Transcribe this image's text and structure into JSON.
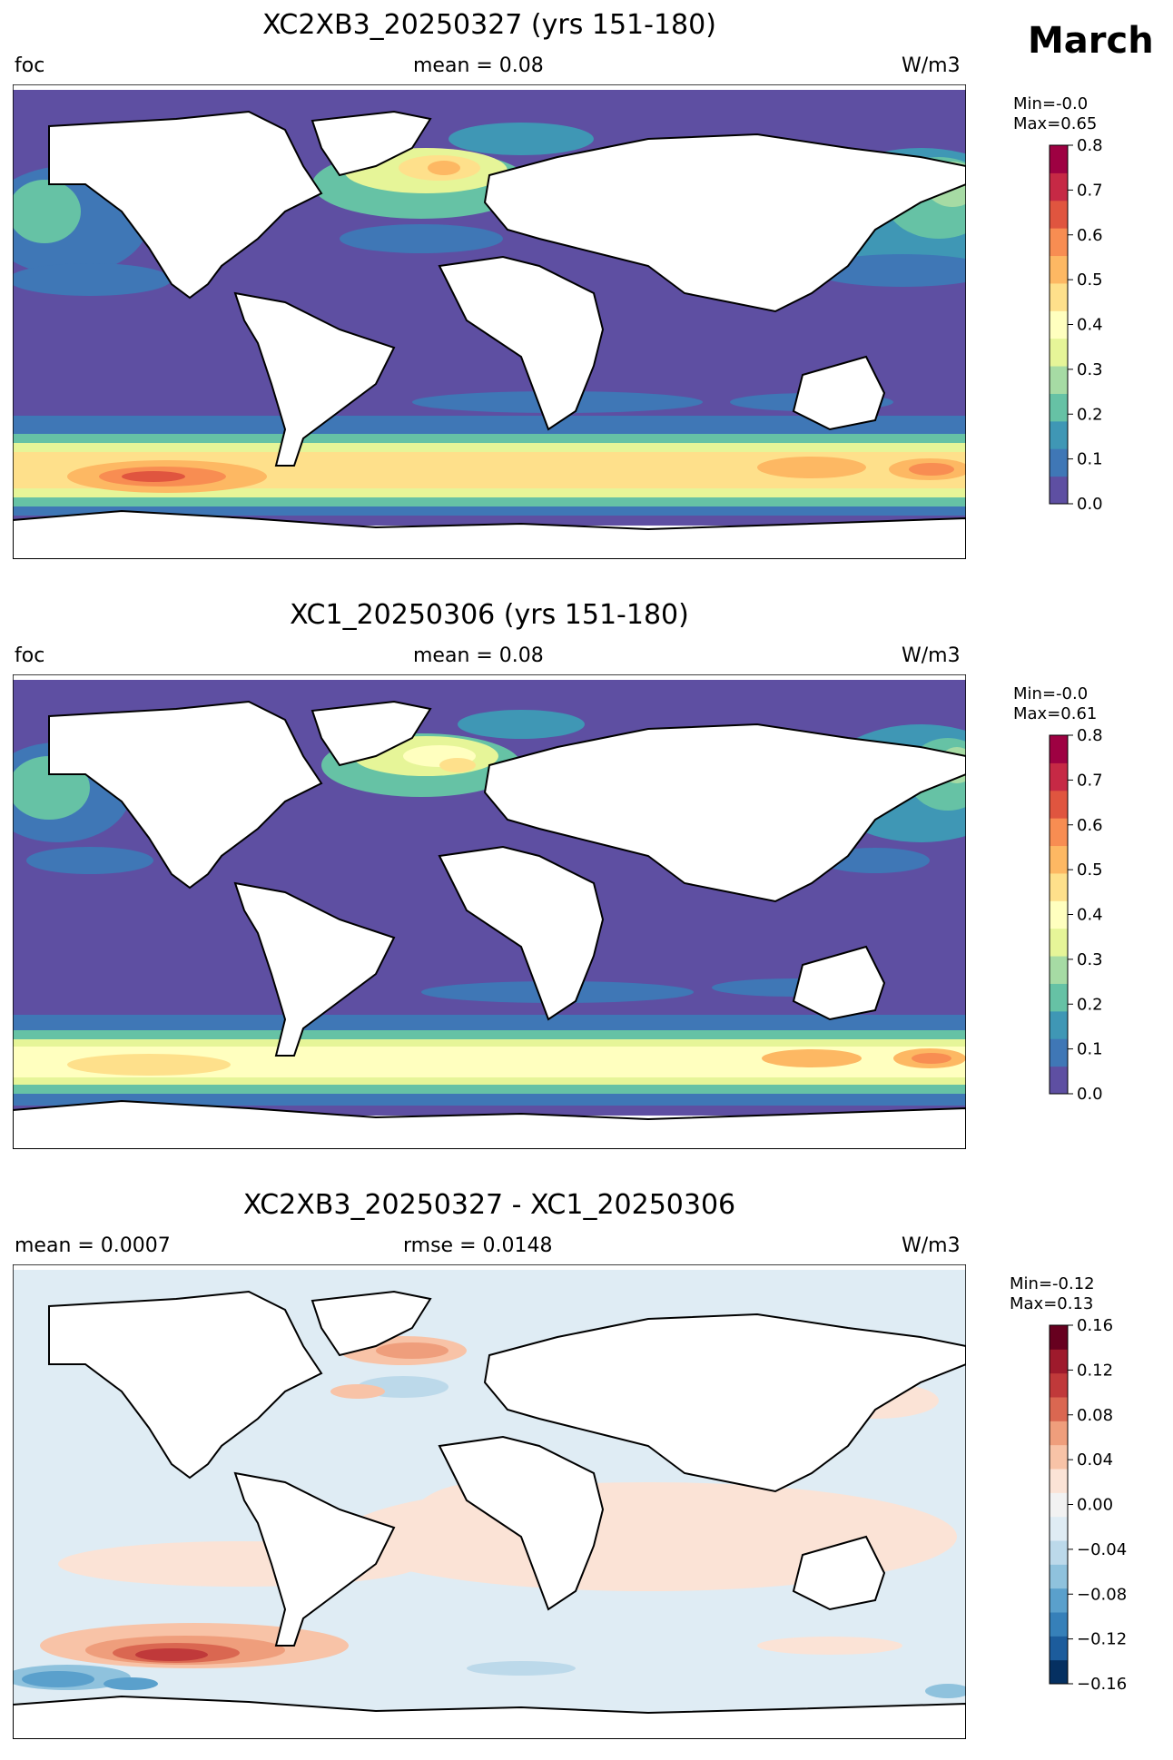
{
  "month": "March",
  "panels": [
    {
      "title": "XC2XB3_20250327 (yrs 151-180)",
      "left": "foc",
      "center": "mean = 0.08",
      "right": "W/m3",
      "min_label": "Min=-0.0",
      "max_label": "Max=0.65"
    },
    {
      "title": "XC1_20250306 (yrs 151-180)",
      "left": "foc",
      "center": "mean = 0.08",
      "right": "W/m3",
      "min_label": "Min=-0.0",
      "max_label": "Max=0.61"
    },
    {
      "title": "XC2XB3_20250327 - XC1_20250306",
      "left": "mean = 0.0007",
      "center": "rmse = 0.0148",
      "right": "W/m3",
      "min_label": "Min=-0.12",
      "max_label": "Max=0.13"
    }
  ],
  "chart_data": [
    {
      "type": "heatmap",
      "title": "XC2XB3_20250327 (yrs 151-180)",
      "variable": "foc",
      "units": "W/m3",
      "mean": 0.08,
      "min": -0.0,
      "max": 0.65,
      "colormap": "Spectral_r",
      "colorbar": {
        "range": [
          0.0,
          0.8
        ],
        "ticks": [
          0.0,
          0.1,
          0.2,
          0.3,
          0.4,
          0.5,
          0.6,
          0.7,
          0.8
        ],
        "tick_labels": [
          "0.0",
          "0.1",
          "0.2",
          "0.3",
          "0.4",
          "0.5",
          "0.6",
          "0.7",
          "0.8"
        ],
        "levels": [
          "#5e4fa2",
          "#3f77b6",
          "#3f97b5",
          "#66c2a5",
          "#a6dba4",
          "#e6f598",
          "#ffffbf",
          "#fee08b",
          "#fdb863",
          "#f88d52",
          "#e0553f",
          "#c62945",
          "#9e0142"
        ]
      }
    },
    {
      "type": "heatmap",
      "title": "XC1_20250306 (yrs 151-180)",
      "variable": "foc",
      "units": "W/m3",
      "mean": 0.08,
      "min": -0.0,
      "max": 0.61,
      "colormap": "Spectral_r",
      "colorbar": {
        "range": [
          0.0,
          0.8
        ],
        "ticks": [
          0.0,
          0.1,
          0.2,
          0.3,
          0.4,
          0.5,
          0.6,
          0.7,
          0.8
        ],
        "tick_labels": [
          "0.0",
          "0.1",
          "0.2",
          "0.3",
          "0.4",
          "0.5",
          "0.6",
          "0.7",
          "0.8"
        ],
        "levels": [
          "#5e4fa2",
          "#3f77b6",
          "#3f97b5",
          "#66c2a5",
          "#a6dba4",
          "#e6f598",
          "#ffffbf",
          "#fee08b",
          "#fdb863",
          "#f88d52",
          "#e0553f",
          "#c62945",
          "#9e0142"
        ]
      }
    },
    {
      "type": "heatmap",
      "title": "XC2XB3_20250327 - XC1_20250306",
      "units": "W/m3",
      "mean": 0.0007,
      "rmse": 0.0148,
      "min": -0.12,
      "max": 0.13,
      "colormap": "RdBu_r",
      "colorbar": {
        "range": [
          -0.16,
          0.16
        ],
        "ticks": [
          -0.16,
          -0.12,
          -0.08,
          -0.04,
          0.0,
          0.04,
          0.08,
          0.12,
          0.16
        ],
        "tick_labels": [
          "−0.16",
          "−0.12",
          "−0.08",
          "−0.04",
          "0.00",
          "0.04",
          "0.08",
          "0.12",
          "0.16"
        ],
        "levels": [
          "#053061",
          "#1c5c9c",
          "#3680b9",
          "#5aa0cc",
          "#8fc2dd",
          "#bcd9ea",
          "#dfecf4",
          "#f2f2f2",
          "#fbe3d6",
          "#f8c3a7",
          "#ef9e7c",
          "#da6751",
          "#c0393a",
          "#9e1a2c",
          "#67001f"
        ]
      }
    }
  ]
}
